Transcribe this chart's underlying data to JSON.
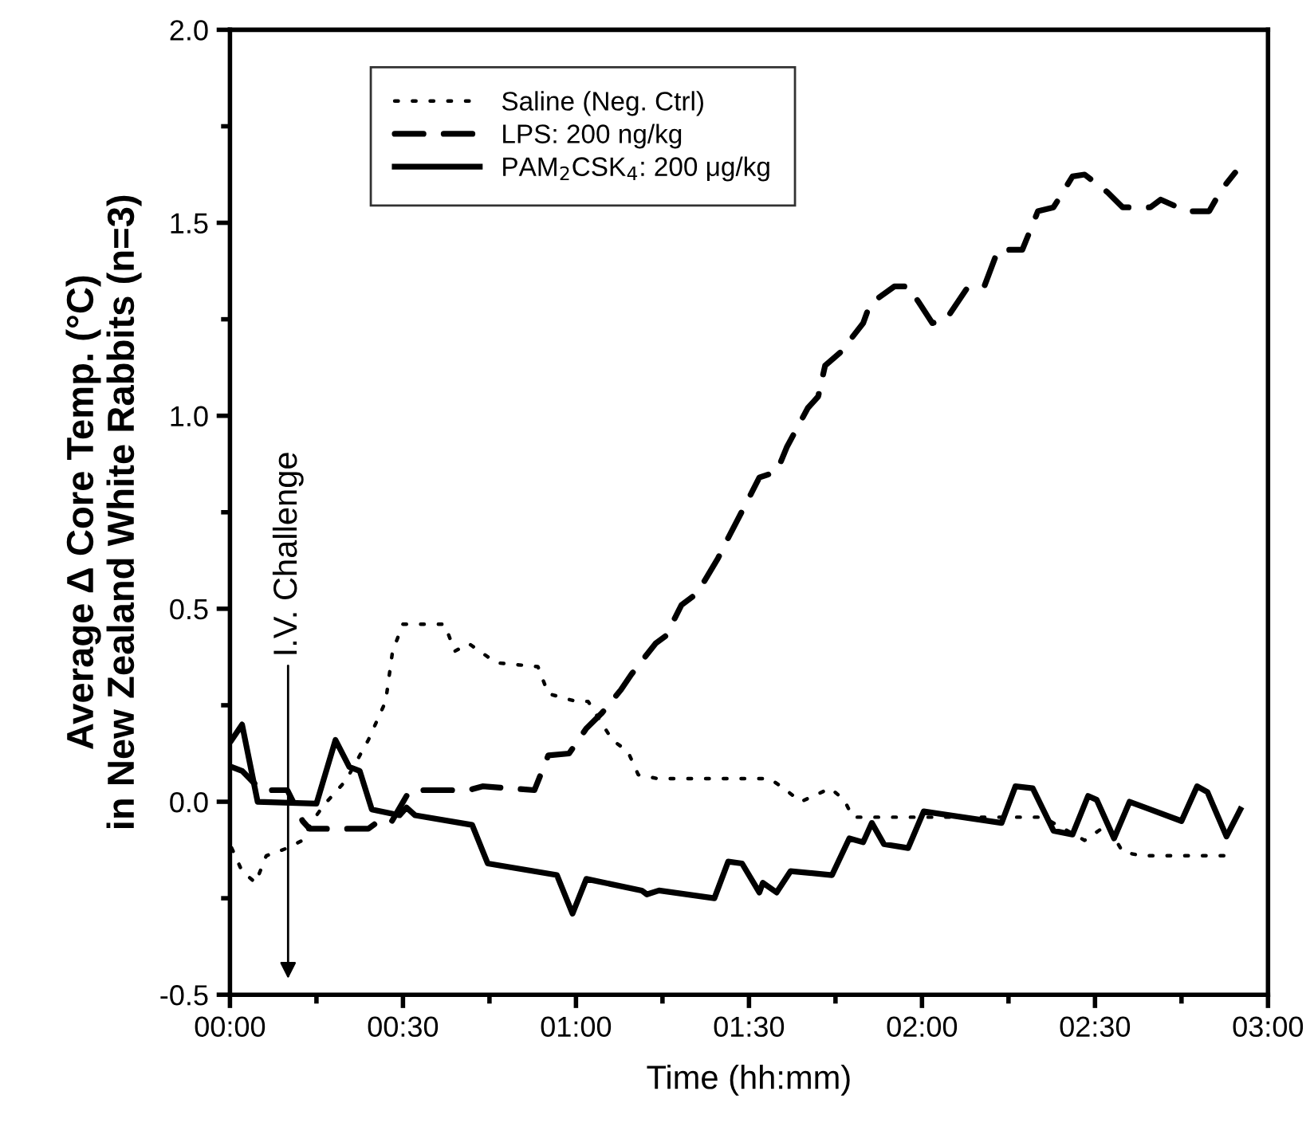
{
  "chart_data": {
    "type": "line",
    "xlabel": "Time (hh:mm)",
    "ylabel": "Average Δ Core Temp. (°C)\nin New Zealand White Rabbits (n=3)",
    "xlim": [
      0,
      3
    ],
    "ylim": [
      -0.5,
      2.0
    ],
    "xticks": [
      {
        "value": 0,
        "label": "00:00"
      },
      {
        "value": 0.5,
        "label": "00:30"
      },
      {
        "value": 1,
        "label": "01:00"
      },
      {
        "value": 1.5,
        "label": "01:30"
      },
      {
        "value": 2,
        "label": "02:00"
      },
      {
        "value": 2.5,
        "label": "02:30"
      },
      {
        "value": 3,
        "label": "03:00"
      }
    ],
    "yticks": [
      {
        "value": -0.5,
        "label": "-0.5"
      },
      {
        "value": 0.0,
        "label": "0.0"
      },
      {
        "value": 0.5,
        "label": "0.5"
      },
      {
        "value": 1.0,
        "label": "1.0"
      },
      {
        "value": 1.5,
        "label": "1.5"
      },
      {
        "value": 2.0,
        "label": "2.0"
      }
    ],
    "grid": false,
    "legend": "top",
    "marker": "none",
    "annotations": [
      "I.V. Challenge"
    ],
    "series": [
      {
        "name": "Saline (Neg. Ctrl)",
        "color": "#000000",
        "line_style": "dotted",
        "x": [
          0.005,
          0.035,
          0.074,
          0.105,
          0.166,
          0.21,
          0.235,
          0.27,
          0.335,
          0.4,
          0.45,
          0.47,
          0.5,
          0.62,
          0.65,
          0.69,
          0.73,
          0.77,
          0.89,
          0.92,
          1.0,
          1.035,
          1.07,
          1.105,
          1.15,
          1.18,
          1.235,
          1.56,
          1.6,
          1.65,
          1.735,
          1.775,
          1.8,
          1.935,
          2.35,
          2.47,
          2.535,
          2.58,
          2.635,
          2.89
        ],
        "values": [
          -0.12,
          -0.18,
          -0.21,
          -0.14,
          -0.12,
          -0.1,
          -0.055,
          -0.01,
          0.055,
          0.16,
          0.26,
          0.39,
          0.46,
          0.46,
          0.39,
          0.41,
          0.385,
          0.36,
          0.35,
          0.28,
          0.26,
          0.26,
          0.21,
          0.16,
          0.13,
          0.07,
          0.06,
          0.06,
          0.035,
          0.0,
          0.035,
          0.005,
          -0.04,
          -0.04,
          -0.04,
          -0.1,
          -0.06,
          -0.13,
          -0.14,
          -0.14
        ]
      },
      {
        "name": "LPS: 200 ng/kg",
        "color": "#000000",
        "line_style": "dashed",
        "x": [
          0.005,
          0.035,
          0.09,
          0.166,
          0.21,
          0.23,
          0.4,
          0.43,
          0.465,
          0.52,
          0.69,
          0.73,
          0.88,
          0.92,
          0.98,
          1.03,
          1.075,
          1.13,
          1.16,
          1.23,
          1.26,
          1.305,
          1.35,
          1.41,
          1.435,
          1.49,
          1.53,
          1.58,
          1.61,
          1.67,
          1.7,
          1.72,
          1.765,
          1.83,
          1.85,
          1.92,
          1.96,
          1.99,
          2.03,
          2.07,
          2.13,
          2.18,
          2.22,
          2.29,
          2.335,
          2.38,
          2.435,
          2.47,
          2.535,
          2.58,
          2.66,
          2.69,
          2.765,
          2.83,
          2.865,
          2.905
        ],
        "values": [
          0.09,
          0.08,
          0.03,
          0.03,
          -0.05,
          -0.07,
          -0.07,
          -0.05,
          -0.055,
          0.03,
          0.03,
          0.04,
          0.03,
          0.12,
          0.125,
          0.19,
          0.23,
          0.29,
          0.33,
          0.41,
          0.43,
          0.51,
          0.54,
          0.63,
          0.675,
          0.77,
          0.84,
          0.855,
          0.92,
          1.02,
          1.05,
          1.13,
          1.165,
          1.24,
          1.29,
          1.335,
          1.335,
          1.295,
          1.24,
          1.25,
          1.33,
          1.335,
          1.43,
          1.43,
          1.53,
          1.54,
          1.62,
          1.625,
          1.58,
          1.54,
          1.54,
          1.56,
          1.53,
          1.53,
          1.585,
          1.63
        ]
      },
      {
        "name": "PAM$_{2}$CSK$_{4}$: 200 μg/kg",
        "color": "#000000",
        "line_style": "solid",
        "x": [
          0.005,
          0.035,
          0.08,
          0.25,
          0.305,
          0.345,
          0.375,
          0.41,
          0.49,
          0.51,
          0.535,
          0.7,
          0.745,
          0.945,
          0.99,
          1.03,
          1.19,
          1.205,
          1.24,
          1.4,
          1.44,
          1.48,
          1.53,
          1.54,
          1.58,
          1.62,
          1.74,
          1.79,
          1.83,
          1.855,
          1.89,
          1.96,
          2.005,
          2.23,
          2.27,
          2.32,
          2.38,
          2.435,
          2.48,
          2.505,
          2.555,
          2.6,
          2.75,
          2.795,
          2.825,
          2.88,
          2.92
        ],
        "values": [
          0.16,
          0.2,
          0.0,
          -0.005,
          0.16,
          0.09,
          0.08,
          -0.02,
          -0.035,
          -0.015,
          -0.035,
          -0.06,
          -0.16,
          -0.19,
          -0.29,
          -0.2,
          -0.23,
          -0.24,
          -0.23,
          -0.25,
          -0.155,
          -0.16,
          -0.235,
          -0.21,
          -0.235,
          -0.18,
          -0.19,
          -0.095,
          -0.105,
          -0.055,
          -0.11,
          -0.12,
          -0.025,
          -0.055,
          0.04,
          0.035,
          -0.075,
          -0.085,
          0.015,
          0.005,
          -0.095,
          0.0,
          -0.05,
          0.04,
          0.025,
          -0.09,
          -0.02
        ]
      }
    ]
  }
}
